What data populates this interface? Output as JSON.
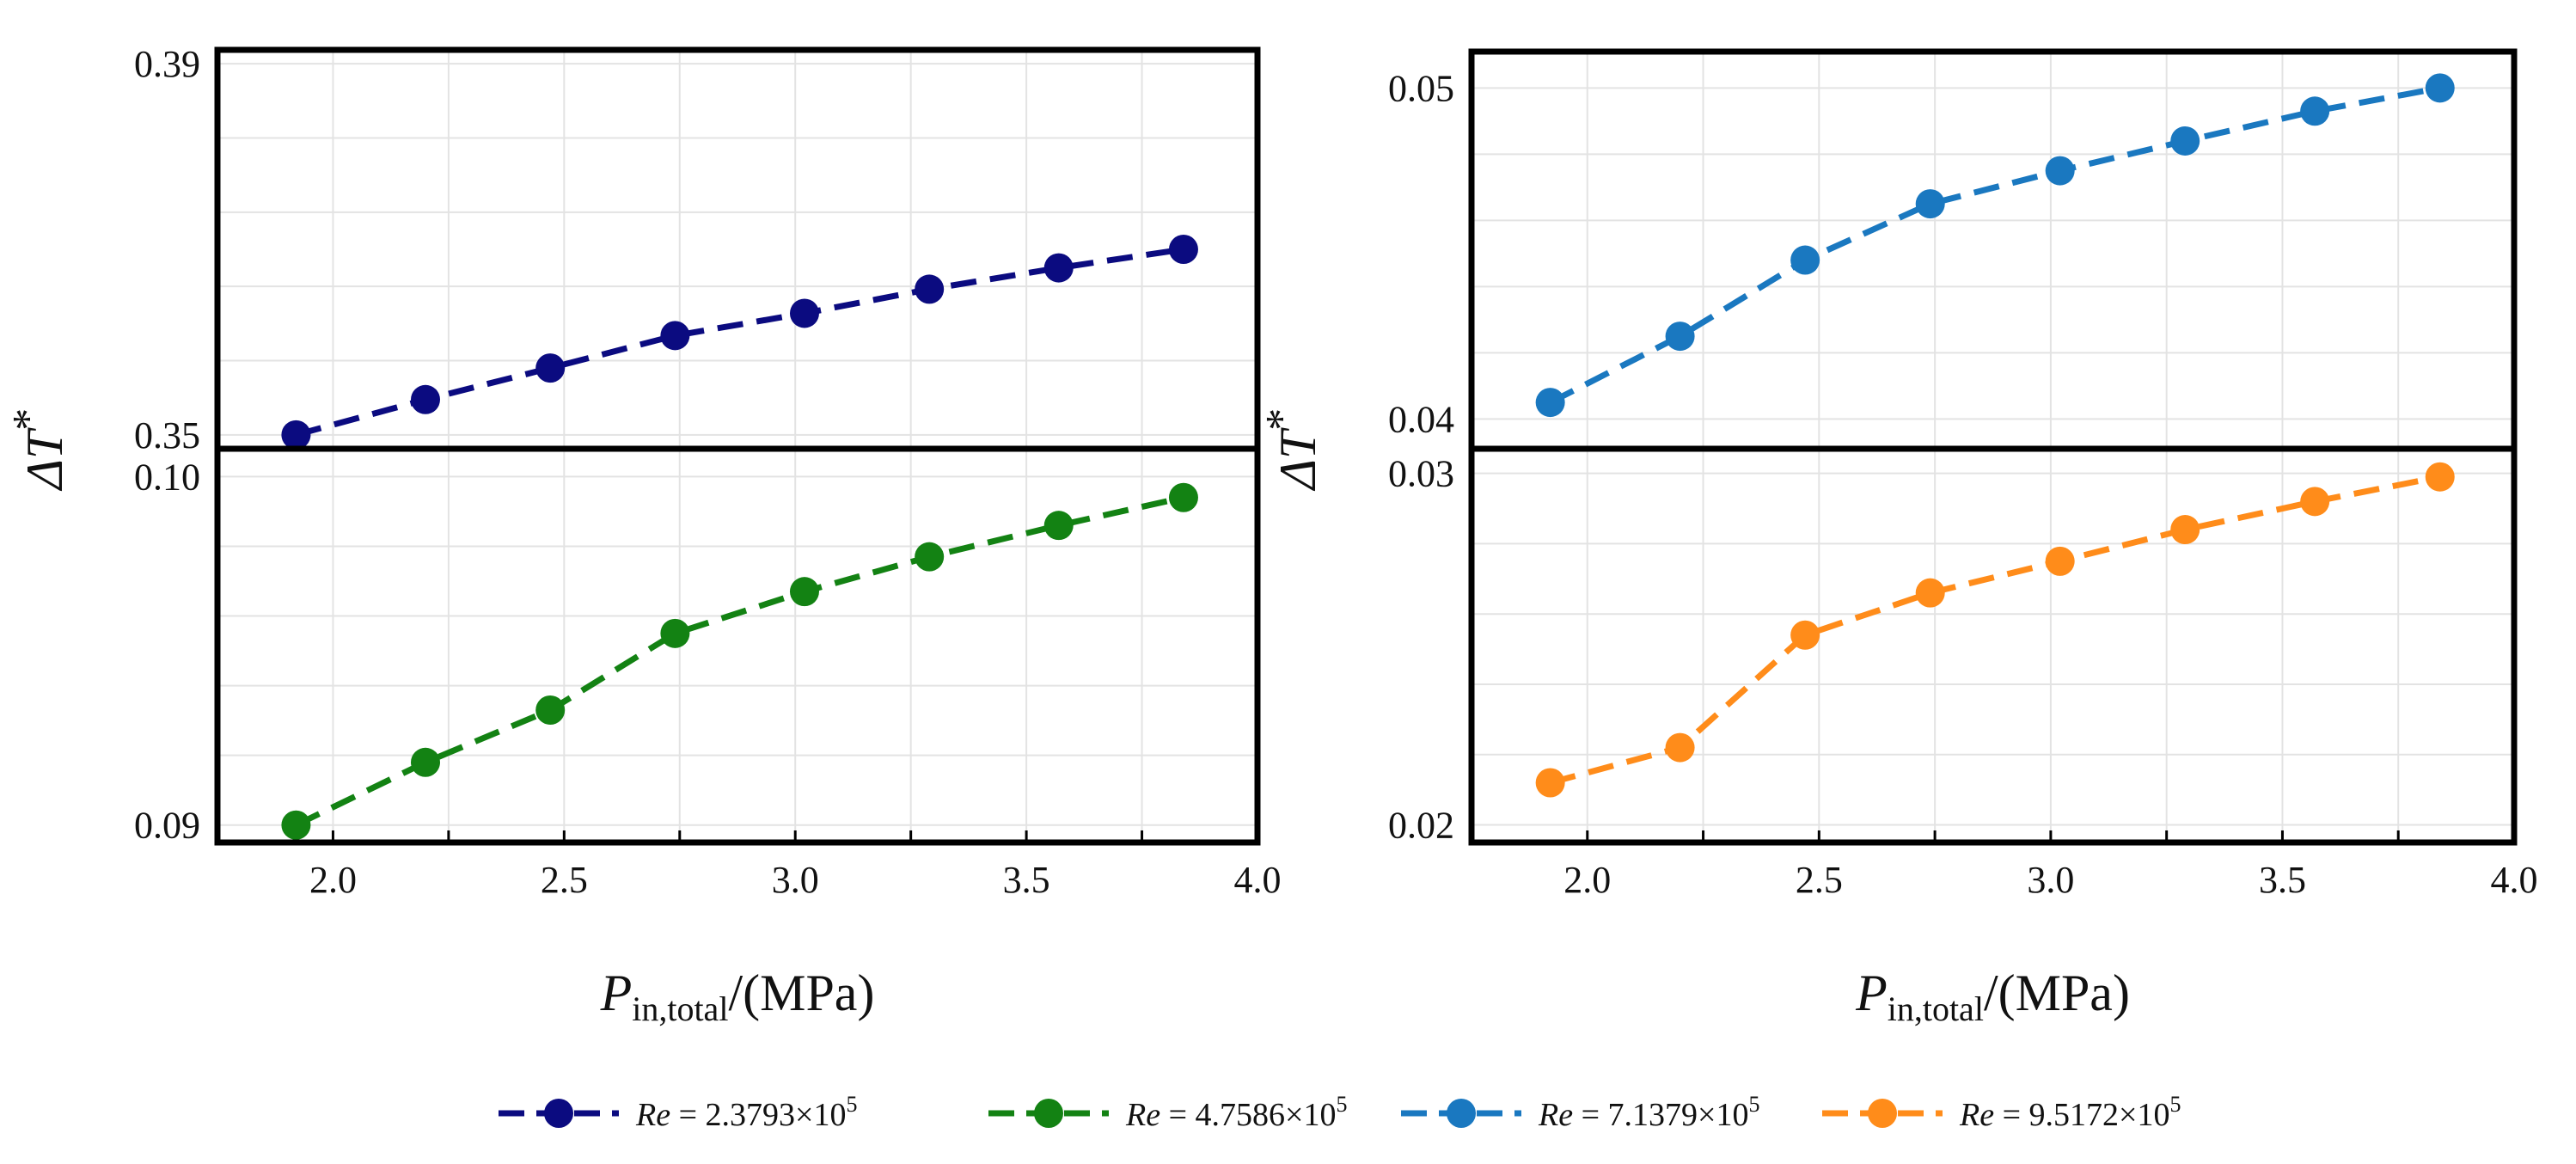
{
  "chart_data": {
    "type": "line",
    "x": [
      1.92,
      2.2,
      2.47,
      2.74,
      3.02,
      3.29,
      3.57,
      3.84
    ],
    "shared_xlabel": {
      "symbol": "P",
      "subscript": "in,total",
      "unit": "/(MPa)"
    },
    "shared_ylabel": {
      "prefix": "ΔT",
      "sup": "*"
    },
    "xlim": [
      1.75,
      4.0
    ],
    "x_ticks": [
      "2.0",
      "2.5",
      "3.0",
      "3.5",
      "4.0"
    ],
    "x_tick_values": [
      2.0,
      2.5,
      3.0,
      3.5,
      4.0
    ],
    "panels": [
      {
        "name": "left",
        "subplots": [
          {
            "series_index": 0,
            "ylim": [
              0.3485,
              0.3915
            ],
            "y_ticks": [
              "0.39",
              "0.35"
            ],
            "y_tick_values": [
              0.39,
              0.35
            ]
          },
          {
            "series_index": 1,
            "ylim": [
              0.0895,
              0.1008
            ],
            "y_ticks": [
              "0.10",
              "0.09"
            ],
            "y_tick_values": [
              0.1,
              0.09
            ]
          }
        ]
      },
      {
        "name": "right",
        "subplots": [
          {
            "series_index": 2,
            "ylim": [
              0.0391,
              0.0511
            ],
            "y_ticks": [
              "0.05",
              "0.04"
            ],
            "y_tick_values": [
              0.05,
              0.04
            ]
          },
          {
            "series_index": 3,
            "ylim": [
              0.0195,
              0.0307
            ],
            "y_ticks": [
              "0.03",
              "0.02"
            ],
            "y_tick_values": [
              0.03,
              0.02
            ]
          }
        ]
      }
    ],
    "series": [
      {
        "name": "Re = 2.3793×10^5",
        "re_label": "Re",
        "re_value": "= 2.3793×10",
        "re_exp": "5",
        "color": "#0b0b80",
        "values": [
          0.35,
          0.3538,
          0.3572,
          0.3607,
          0.3631,
          0.3657,
          0.368,
          0.37
        ]
      },
      {
        "name": "Re = 4.7586×10^5",
        "re_label": "Re",
        "re_value": "= 4.7586×10",
        "re_exp": "5",
        "color": "#138213",
        "values": [
          0.09,
          0.0918,
          0.0933,
          0.0955,
          0.0967,
          0.0977,
          0.0986,
          0.0994
        ]
      },
      {
        "name": "Re = 7.1379×10^5",
        "re_label": "Re",
        "re_value": "= 7.1379×10",
        "re_exp": "5",
        "color": "#1a78c0",
        "values": [
          0.0405,
          0.0425,
          0.0448,
          0.0465,
          0.0475,
          0.0484,
          0.0493,
          0.05
        ]
      },
      {
        "name": "Re = 9.5172×10^5",
        "re_label": "Re",
        "re_value": "= 9.5172×10",
        "re_exp": "5",
        "color": "#ff8c1a",
        "values": [
          0.0212,
          0.0222,
          0.0254,
          0.0266,
          0.0275,
          0.0284,
          0.0292,
          0.0299
        ]
      }
    ],
    "legend_position": "bottom"
  }
}
